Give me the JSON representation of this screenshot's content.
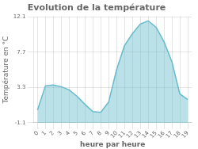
{
  "chart_data": {
    "type": "area",
    "title": "Evolution de la température",
    "x_label": "heure par heure",
    "y_label": "Température en °C",
    "x": [
      0,
      1,
      2,
      3,
      4,
      5,
      6,
      7,
      8,
      9,
      10,
      11,
      12,
      13,
      14,
      15,
      16,
      17,
      18,
      19
    ],
    "values": [
      0.5,
      3.5,
      3.6,
      3.4,
      3.0,
      2.2,
      1.2,
      0.3,
      0.2,
      1.5,
      5.5,
      8.5,
      10.0,
      11.2,
      11.6,
      10.8,
      9.0,
      6.5,
      2.5,
      1.8
    ],
    "color": "#66bbcc",
    "xlim": [
      -0.5,
      19.5
    ],
    "xticks": [
      0,
      1,
      2,
      3,
      4,
      5,
      6,
      7,
      8,
      9,
      10,
      11,
      12,
      13,
      14,
      15,
      16,
      17,
      18,
      19
    ],
    "ylim": [
      -1.1,
      12.1
    ],
    "yticks": [
      -1.1,
      3.3,
      7.7,
      12.1
    ],
    "grid": true
  }
}
